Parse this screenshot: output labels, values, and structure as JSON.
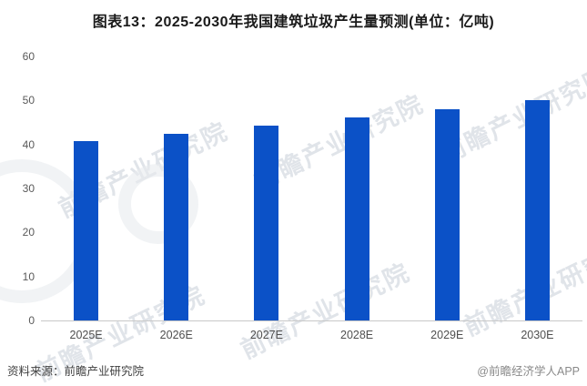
{
  "title": "图表13：2025-2030年我国建筑垃圾产生量预测(单位：亿吨)",
  "chart_data": {
    "type": "bar",
    "categories": [
      "2025E",
      "2026E",
      "2027E",
      "2028E",
      "2029E",
      "2030E"
    ],
    "values": [
      40.7,
      42.5,
      44.3,
      46.1,
      48.1,
      50.0
    ],
    "title": "图表13：2025-2030年我国建筑垃圾产生量预测(单位：亿吨)",
    "xlabel": "",
    "ylabel": "",
    "ylim": [
      0,
      60
    ],
    "yticks": [
      0,
      10,
      20,
      30,
      40,
      50,
      60
    ],
    "grid": false,
    "legend": false,
    "bar_color": "#0b51c7"
  },
  "footer": {
    "source": "资料来源：前瞻产业研究院",
    "credit": "@前瞻经济学人APP"
  },
  "watermark": {
    "text": "前瞻产业研究院"
  },
  "colors": {
    "bar": "#0b51c7",
    "axis_line": "#c8c8c8",
    "tick_text": "#595959",
    "watermark": "#d6dbe2"
  }
}
